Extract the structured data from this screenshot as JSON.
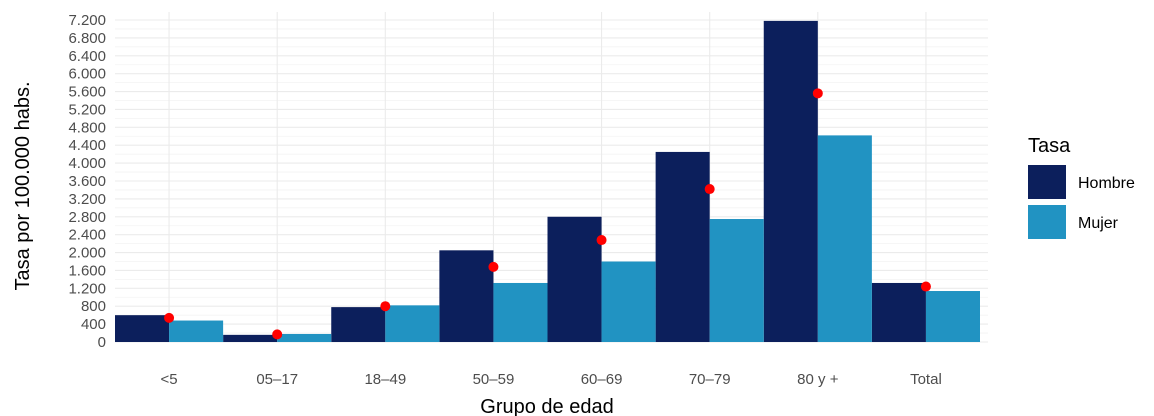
{
  "chart_data": {
    "type": "bar",
    "categories": [
      "<5",
      "05–17",
      "18–49",
      "50–59",
      "60–69",
      "70–79",
      "80 y +",
      "Total"
    ],
    "series": [
      {
        "name": "Hombre",
        "values": [
          600,
          160,
          780,
          2050,
          2800,
          4250,
          7180,
          1320
        ],
        "color": "#0c1f5c"
      },
      {
        "name": "Mujer",
        "values": [
          480,
          180,
          820,
          1320,
          1800,
          2750,
          4620,
          1140
        ],
        "color": "#2193c2"
      }
    ],
    "points": {
      "values": [
        540,
        170,
        800,
        1680,
        2280,
        3420,
        5560,
        1240
      ],
      "color": "#ff0000"
    },
    "xlabel": "Grupo de edad",
    "ylabel": "Tasa por 100.000 habs.",
    "ylim": [
      0,
      7200
    ],
    "y_ticks": [
      0,
      400,
      800,
      1200,
      1600,
      2000,
      2400,
      2800,
      3200,
      3600,
      4000,
      4400,
      4800,
      5200,
      5600,
      6000,
      6400,
      6800,
      7200
    ],
    "y_tick_labels": [
      "0",
      "400",
      "800",
      "1.200",
      "1.600",
      "2.000",
      "2.400",
      "2.800",
      "3.200",
      "3.600",
      "4.000",
      "4.400",
      "4.800",
      "5.200",
      "5.600",
      "6.000",
      "6.400",
      "6.800",
      "7.200"
    ],
    "legend": {
      "title": "Tasa",
      "position": "right"
    },
    "grid": true
  }
}
